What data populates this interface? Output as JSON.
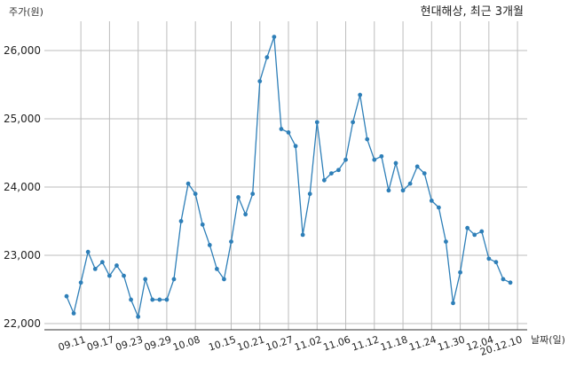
{
  "chart_data": {
    "type": "line",
    "title": "현대해상, 최근 3개월",
    "ylabel": "주가(원)",
    "xlabel": "날짜(일)",
    "ylim": [
      21900,
      26400
    ],
    "yticks": [
      22000,
      23000,
      24000,
      25000,
      26000
    ],
    "ytick_labels": [
      "22,000",
      "23,000",
      "24,000",
      "25,000",
      "26,000"
    ],
    "grid": true,
    "line_color": "#2e7fb8",
    "x_tick_labels": [
      "09.11",
      "09.17",
      "09.23",
      "09.29",
      "10.08",
      "10.15",
      "10.21",
      "10.27",
      "11.02",
      "11.06",
      "11.12",
      "11.18",
      "11.24",
      "11.30",
      "12.04",
      "20.12.10"
    ],
    "x_tick_index": [
      2,
      6,
      10,
      14,
      18,
      23,
      27,
      31,
      35,
      39,
      43,
      47,
      51,
      55,
      59,
      63
    ],
    "series": [
      {
        "values": [
          22400,
          22150,
          22600,
          23050,
          22800,
          22900,
          22700,
          22850,
          22700,
          22350,
          22100,
          22650,
          22350,
          22350,
          22350,
          22650,
          23500,
          24050,
          23900,
          23450,
          23150,
          22800,
          22650,
          23200,
          23850,
          23600,
          23900,
          25550,
          25900,
          26200,
          24850,
          24800,
          24600,
          23300,
          23900,
          24950,
          24100,
          24200,
          24250,
          24400,
          24950,
          25350,
          24700,
          24400,
          24450,
          23950,
          24350,
          23950,
          24050,
          24300,
          24200,
          23800,
          23700,
          23200,
          22300,
          22750,
          23400,
          23300,
          23350,
          22950,
          22900,
          22650,
          22600
        ]
      }
    ]
  }
}
